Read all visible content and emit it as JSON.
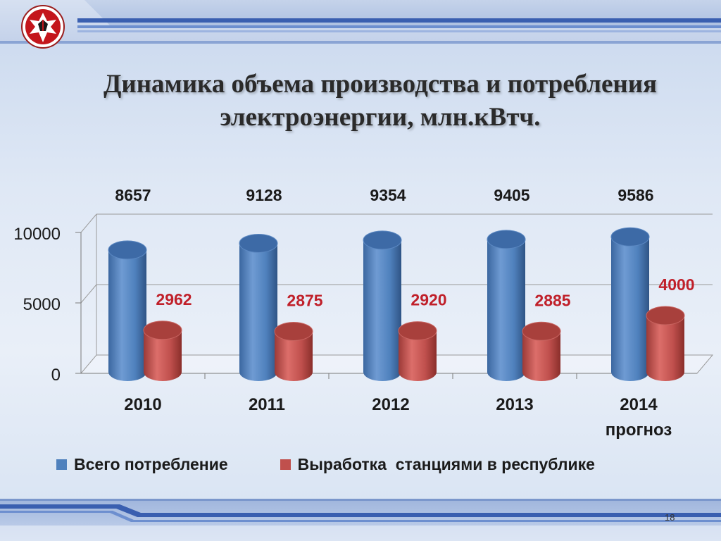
{
  "slide": {
    "title_line1": "Динамика объема производства и потребления",
    "title_line2": "электроэнергии, млн.кВтч.",
    "page_number": "18"
  },
  "colors": {
    "series_blue": "#4f81bd",
    "series_red": "#c0504d",
    "label_red": "#c0202a",
    "label_dark": "#1a1a1a"
  },
  "chart_data": {
    "type": "bar",
    "categories": [
      "2010",
      "2011",
      "2012",
      "2013",
      "2014"
    ],
    "category_sublabels": [
      "",
      "",
      "",
      "",
      "прогноз"
    ],
    "series": [
      {
        "name": "Всего потребление",
        "values": [
          8657,
          9128,
          9354,
          9405,
          9586
        ]
      },
      {
        "name": "Выработка  станциями в республике",
        "values": [
          2962,
          2875,
          2920,
          2885,
          4000
        ]
      }
    ],
    "y_ticks": [
      "0",
      "5000",
      "10000"
    ],
    "ylim": [
      0,
      10000
    ],
    "grid": true,
    "legend_position": "bottom",
    "style": "3d-cylinder"
  },
  "icons": {
    "emblem": "udmurtia-coat-of-arms-icon"
  }
}
